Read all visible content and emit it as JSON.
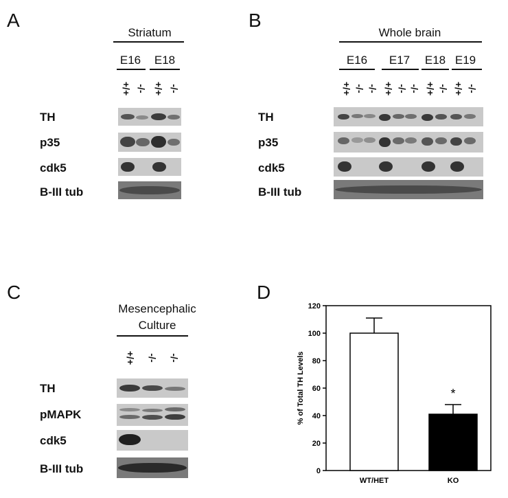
{
  "panels": {
    "A": {
      "letter": "A",
      "tissue": "Striatum",
      "ages": [
        "E16",
        "E18"
      ],
      "genotypes": [
        "+/+",
        "-/-",
        "+/+",
        "-/-"
      ],
      "rows": [
        "TH",
        "p35",
        "cdk5",
        "B-III tub"
      ]
    },
    "B": {
      "letter": "B",
      "tissue": "Whole brain",
      "ages": [
        "E16",
        "E17",
        "E18",
        "E19"
      ],
      "genotypes": [
        "+/+",
        "-/-",
        "-/-",
        "+/+",
        "-/-",
        "-/-",
        "+/+",
        "-/-",
        "+/+",
        "-/-"
      ],
      "rows": [
        "TH",
        "p35",
        "cdk5",
        "B-III tub"
      ]
    },
    "C": {
      "letter": "C",
      "tissue_line1": "Mesencephalic",
      "tissue_line2": "Culture",
      "genotypes": [
        "+/+",
        "-/-",
        "-/-"
      ],
      "rows": [
        "TH",
        "pMAPK",
        "cdk5",
        "B-III tub"
      ]
    },
    "D": {
      "letter": "D"
    }
  },
  "chart_data": {
    "type": "bar",
    "categories": [
      "WT/HET",
      "KO"
    ],
    "values": [
      100,
      41
    ],
    "errors": [
      11,
      7
    ],
    "bar_colors": [
      "#ffffff",
      "#000000"
    ],
    "ylabel": "% of Total TH Levels",
    "ylim": [
      0,
      120
    ],
    "yticks": [
      0,
      20,
      40,
      60,
      80,
      100,
      120
    ],
    "annotations": [
      {
        "category": "KO",
        "text": "*"
      }
    ],
    "grid": false
  }
}
